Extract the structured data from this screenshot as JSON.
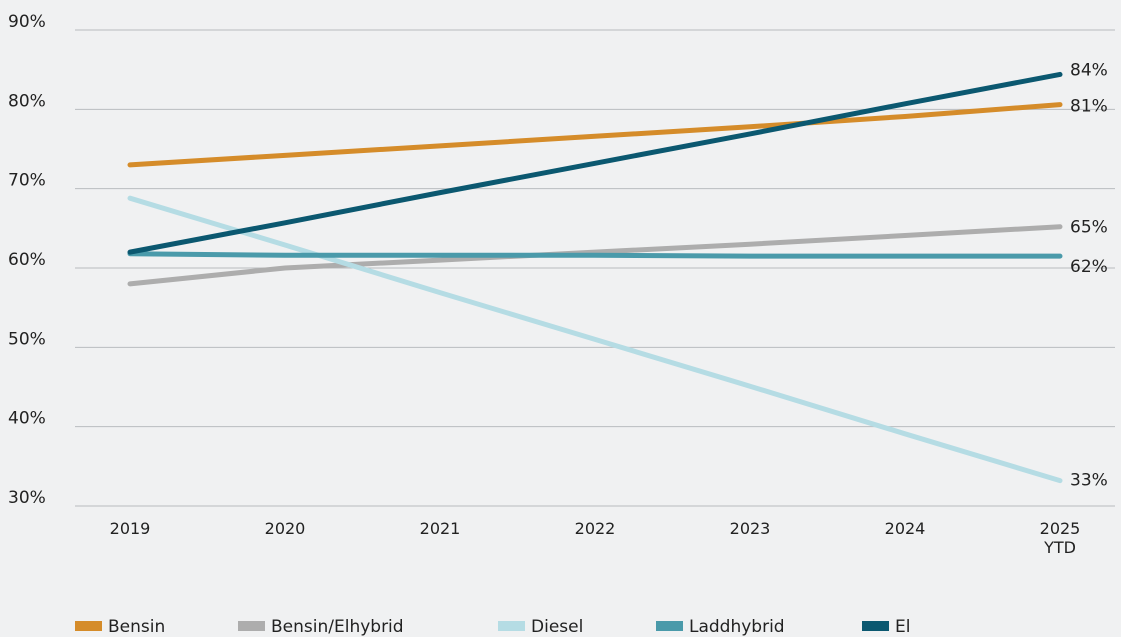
{
  "chart_data": {
    "type": "line",
    "categories": [
      "2019",
      "2020",
      "2021",
      "2022",
      "2023",
      "2024",
      "2025 YTD"
    ],
    "series": [
      {
        "name": "Bensin",
        "color": "#d58c2a",
        "values": [
          73,
          74.2,
          75.4,
          76.6,
          77.8,
          79.1,
          80.6
        ],
        "value_labels": [
          null,
          null,
          null,
          null,
          null,
          null,
          "81%"
        ]
      },
      {
        "name": "Bensin/Elhybrid",
        "color": "#adadad",
        "values": [
          58,
          60,
          61,
          62,
          63,
          64.1,
          65.2
        ],
        "value_labels": [
          null,
          null,
          null,
          null,
          null,
          null,
          "65%"
        ]
      },
      {
        "name": "Diesel",
        "color": "#b5dce4",
        "values": [
          68.8,
          62.9,
          56.9,
          51,
          45.1,
          39.1,
          33.2
        ],
        "value_labels": [
          null,
          null,
          null,
          null,
          null,
          null,
          "33%"
        ]
      },
      {
        "name": "Laddhybrid",
        "color": "#4a9aaa",
        "values": [
          61.8,
          61.6,
          61.6,
          61.6,
          61.5,
          61.5,
          61.5
        ],
        "value_labels": [
          null,
          null,
          null,
          null,
          null,
          null,
          "62%"
        ]
      },
      {
        "name": "El",
        "color": "#0b5870",
        "values": [
          62,
          65.7,
          69.5,
          73.2,
          76.9,
          80.7,
          84.4
        ],
        "value_labels": [
          null,
          null,
          null,
          null,
          null,
          null,
          "84%"
        ]
      }
    ],
    "ylim": [
      30,
      90
    ],
    "yticks": [
      {
        "value": 30,
        "label": "30%"
      },
      {
        "value": 40,
        "label": "40%"
      },
      {
        "value": 50,
        "label": "50%"
      },
      {
        "value": 60,
        "label": "60%"
      },
      {
        "value": 70,
        "label": "70%"
      },
      {
        "value": 80,
        "label": "80%"
      },
      {
        "value": 90,
        "label": "90%"
      }
    ],
    "grid": true,
    "legend": "bottom"
  }
}
